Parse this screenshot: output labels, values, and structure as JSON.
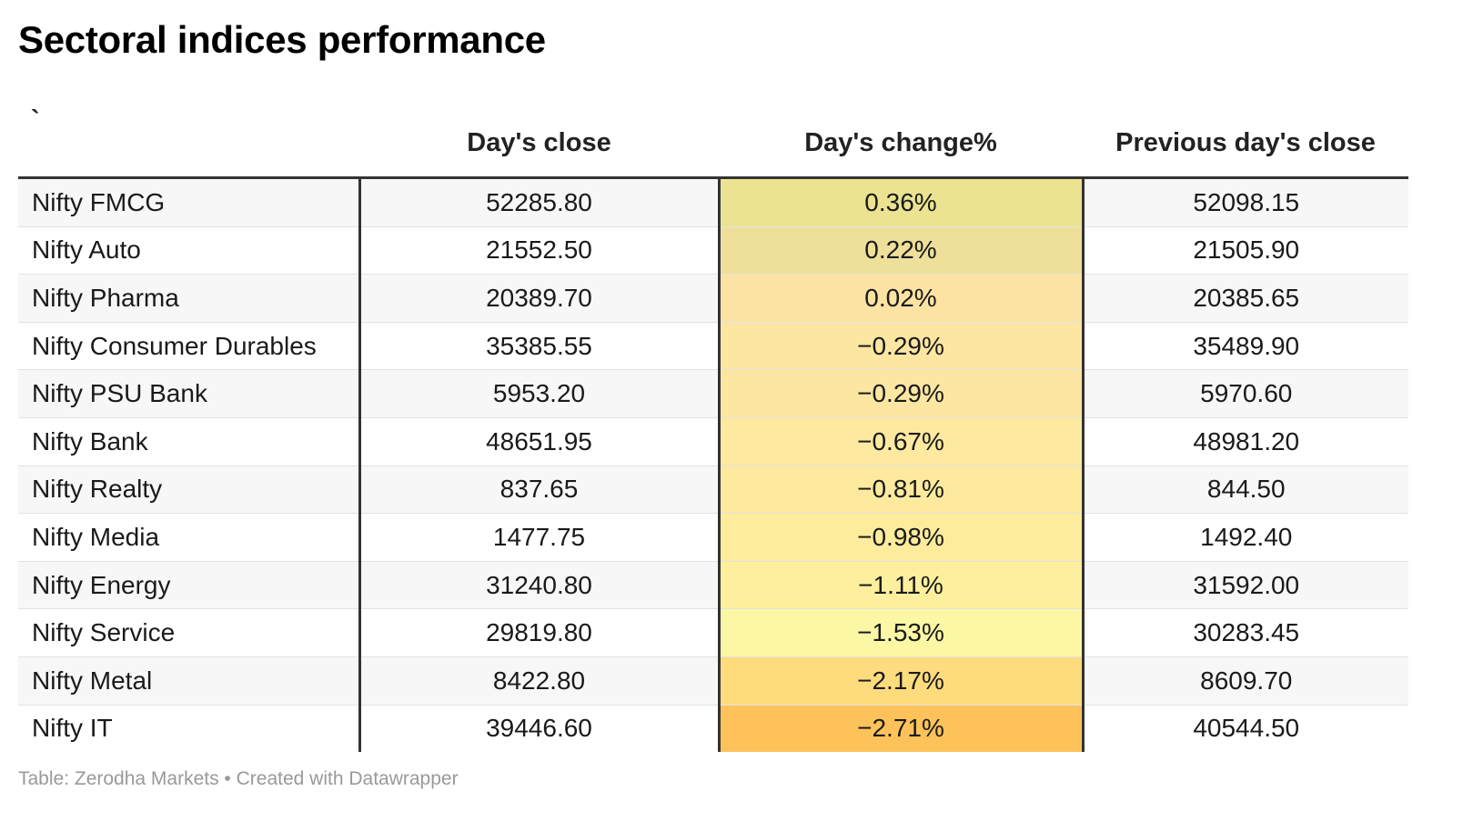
{
  "chart_data": {
    "type": "table",
    "title": "Sectoral indices performance",
    "columns": [
      "`",
      "Day's close",
      "Day's change%",
      "Previous day's close"
    ],
    "rows": [
      {
        "name": "Nifty FMCG",
        "close": "52285.80",
        "change": "0.36%",
        "prev": "52098.15",
        "change_value": 0.36,
        "color": "#ebe391"
      },
      {
        "name": "Nifty Auto",
        "close": "21552.50",
        "change": "0.22%",
        "prev": "21505.90",
        "change_value": 0.22,
        "color": "#eee09a"
      },
      {
        "name": "Nifty Pharma",
        "close": "20389.70",
        "change": "0.02%",
        "prev": "20385.65",
        "change_value": 0.02,
        "color": "#fde3a3"
      },
      {
        "name": "Nifty Consumer Durables",
        "close": "35385.55",
        "change": "−0.29%",
        "prev": "35489.90",
        "change_value": -0.29,
        "color": "#fde6a2"
      },
      {
        "name": "Nifty PSU Bank",
        "close": "5953.20",
        "change": "−0.29%",
        "prev": "5970.60",
        "change_value": -0.29,
        "color": "#fde6a2"
      },
      {
        "name": "Nifty Bank",
        "close": "48651.95",
        "change": "−0.67%",
        "prev": "48981.20",
        "change_value": -0.67,
        "color": "#fde9a0"
      },
      {
        "name": "Nifty Realty",
        "close": "837.65",
        "change": "−0.81%",
        "prev": "844.50",
        "change_value": -0.81,
        "color": "#fdea9e"
      },
      {
        "name": "Nifty Media",
        "close": "1477.75",
        "change": "−0.98%",
        "prev": "1492.40",
        "change_value": -0.98,
        "color": "#fdec9c"
      },
      {
        "name": "Nifty Energy",
        "close": "31240.80",
        "change": "−1.11%",
        "prev": "31592.00",
        "change_value": -1.11,
        "color": "#fdef9d"
      },
      {
        "name": "Nifty Service",
        "close": "29819.80",
        "change": "−1.53%",
        "prev": "30283.45",
        "change_value": -1.53,
        "color": "#fbf7a4"
      },
      {
        "name": "Nifty Metal",
        "close": "8422.80",
        "change": "−2.17%",
        "prev": "8609.70",
        "change_value": -2.17,
        "color": "#fedc7d"
      },
      {
        "name": "Nifty IT",
        "close": "39446.60",
        "change": "−2.71%",
        "prev": "40544.50",
        "change_value": -2.71,
        "color": "#fdc25a"
      }
    ]
  },
  "footer": "Table: Zerodha Markets • Created with Datawrapper"
}
